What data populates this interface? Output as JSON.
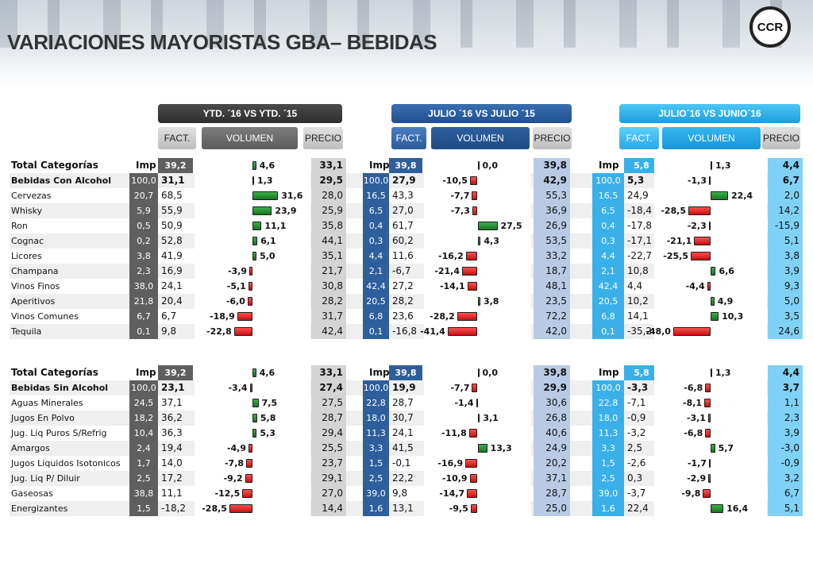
{
  "title": "VARIACIONES MAYORISTAS GBA– BEBIDAS",
  "logo_text": "CCR",
  "headers": {
    "ytd": "YTD. ´16 VS YTD. ´15",
    "julio_anual": "JULIO ´16 VS JULIO ´15",
    "julio_mensual": "JULIO´16 VS JUNIO´16",
    "fact": "FACT.",
    "volumen": "VOLUMEN",
    "precio": "PRECIO"
  },
  "imp_label": "Imp",
  "tables": [
    {
      "rows": [
        {
          "label": "Total  Categorías",
          "style": "t",
          "p1": {
            "imp": "39,2",
            "fact": "",
            "vol": 4.6,
            "vol_txt": "4,6",
            "precio": "33,1"
          },
          "p2": {
            "imp": "39,8",
            "fact": "",
            "vol": 0.0,
            "vol_txt": "0,0",
            "precio": "39,8"
          },
          "p3": {
            "imp": "5,8",
            "fact": "",
            "vol": 1.3,
            "vol_txt": "1,3",
            "precio": "4,4"
          }
        },
        {
          "label": "Bebidas Con Alcohol",
          "style": "b",
          "p1": {
            "imp": "100,0",
            "fact": "31,1",
            "vol": 1.3,
            "vol_txt": "1,3",
            "precio": "29,5"
          },
          "p2": {
            "imp": "100,0",
            "fact": "27,9",
            "vol": -10.5,
            "vol_txt": "-10,5",
            "precio": "42,9"
          },
          "p3": {
            "imp": "100,0",
            "fact": "5,3",
            "vol": -1.3,
            "vol_txt": "-1,3",
            "precio": "6,7"
          }
        },
        {
          "label": "Cervezas",
          "style": "",
          "p1": {
            "imp": "20,7",
            "fact": "68,5",
            "vol": 31.6,
            "vol_txt": "31,6",
            "precio": "28,0"
          },
          "p2": {
            "imp": "16,5",
            "fact": "43,3",
            "vol": -7.7,
            "vol_txt": "-7,7",
            "precio": "55,3"
          },
          "p3": {
            "imp": "16,5",
            "fact": "24,9",
            "vol": 22.4,
            "vol_txt": "22,4",
            "precio": "2,0"
          }
        },
        {
          "label": "Whisky",
          "style": "",
          "p1": {
            "imp": "5,9",
            "fact": "55,9",
            "vol": 23.9,
            "vol_txt": "23,9",
            "precio": "25,9"
          },
          "p2": {
            "imp": "6,5",
            "fact": "27,0",
            "vol": -7.3,
            "vol_txt": "-7,3",
            "precio": "36,9"
          },
          "p3": {
            "imp": "6,5",
            "fact": "-18,4",
            "vol": -28.5,
            "vol_txt": "-28,5",
            "precio": "14,2"
          }
        },
        {
          "label": "Ron",
          "style": "",
          "p1": {
            "imp": "0,5",
            "fact": "50,9",
            "vol": 11.1,
            "vol_txt": "11,1",
            "precio": "35,8"
          },
          "p2": {
            "imp": "0,4",
            "fact": "61,7",
            "vol": 27.5,
            "vol_txt": "27,5",
            "precio": "26,9"
          },
          "p3": {
            "imp": "0,4",
            "fact": "-17,8",
            "vol": -2.3,
            "vol_txt": "-2,3",
            "precio": "-15,9"
          }
        },
        {
          "label": "Cognac",
          "style": "",
          "p1": {
            "imp": "0,2",
            "fact": "52,8",
            "vol": 6.1,
            "vol_txt": "6,1",
            "precio": "44,1"
          },
          "p2": {
            "imp": "0,3",
            "fact": "60,2",
            "vol": 4.3,
            "vol_txt": "4,3",
            "precio": "53,5"
          },
          "p3": {
            "imp": "0,3",
            "fact": "-17,1",
            "vol": -21.1,
            "vol_txt": "-21,1",
            "precio": "5,1"
          }
        },
        {
          "label": "Licores",
          "style": "",
          "p1": {
            "imp": "3,8",
            "fact": "41,9",
            "vol": 5.0,
            "vol_txt": "5,0",
            "precio": "35,1"
          },
          "p2": {
            "imp": "4,4",
            "fact": "11,6",
            "vol": -16.2,
            "vol_txt": "-16,2",
            "precio": "33,2"
          },
          "p3": {
            "imp": "4,4",
            "fact": "-22,7",
            "vol": -25.5,
            "vol_txt": "-25,5",
            "precio": "3,8"
          }
        },
        {
          "label": "Champana",
          "style": "",
          "p1": {
            "imp": "2,3",
            "fact": "16,9",
            "vol": -3.9,
            "vol_txt": "-3,9",
            "precio": "21,7"
          },
          "p2": {
            "imp": "2,1",
            "fact": "-6,7",
            "vol": -21.4,
            "vol_txt": "-21,4",
            "precio": "18,7"
          },
          "p3": {
            "imp": "2,1",
            "fact": "10,8",
            "vol": 6.6,
            "vol_txt": "6,6",
            "precio": "3,9"
          }
        },
        {
          "label": "Vinos Finos",
          "style": "",
          "p1": {
            "imp": "38,0",
            "fact": "24,1",
            "vol": -5.1,
            "vol_txt": "-5,1",
            "precio": "30,8"
          },
          "p2": {
            "imp": "42,4",
            "fact": "27,2",
            "vol": -14.1,
            "vol_txt": "-14,1",
            "precio": "48,1"
          },
          "p3": {
            "imp": "42,4",
            "fact": "4,4",
            "vol": -4.4,
            "vol_txt": "-4,4",
            "precio": "9,3"
          }
        },
        {
          "label": "Aperitivos",
          "style": "",
          "p1": {
            "imp": "21,8",
            "fact": "20,4",
            "vol": -6.0,
            "vol_txt": "-6,0",
            "precio": "28,2"
          },
          "p2": {
            "imp": "20,5",
            "fact": "28,2",
            "vol": 3.8,
            "vol_txt": "3,8",
            "precio": "23,5"
          },
          "p3": {
            "imp": "20,5",
            "fact": "10,2",
            "vol": 4.9,
            "vol_txt": "4,9",
            "precio": "5,0"
          }
        },
        {
          "label": "Vinos Comunes",
          "style": "",
          "p1": {
            "imp": "6,7",
            "fact": "6,7",
            "vol": -18.9,
            "vol_txt": "-18,9",
            "precio": "31,7"
          },
          "p2": {
            "imp": "6,8",
            "fact": "23,6",
            "vol": -28.2,
            "vol_txt": "-28,2",
            "precio": "72,2"
          },
          "p3": {
            "imp": "6,8",
            "fact": "14,1",
            "vol": 10.3,
            "vol_txt": "10,3",
            "precio": "3,5"
          }
        },
        {
          "label": "Tequila",
          "style": "",
          "p1": {
            "imp": "0,1",
            "fact": "9,8",
            "vol": -22.8,
            "vol_txt": "-22,8",
            "precio": "42,4"
          },
          "p2": {
            "imp": "0,1",
            "fact": "-16,8",
            "vol": -41.4,
            "vol_txt": "-41,4",
            "precio": "42,0"
          },
          "p3": {
            "imp": "0,1",
            "fact": "-35,2",
            "vol": -48.0,
            "vol_txt": "-48,0",
            "precio": "24,6"
          }
        }
      ]
    },
    {
      "rows": [
        {
          "label": "Total  Categorías",
          "style": "t",
          "p1": {
            "imp": "39,2",
            "fact": "",
            "vol": 4.6,
            "vol_txt": "4,6",
            "precio": "33,1"
          },
          "p2": {
            "imp": "39,8",
            "fact": "",
            "vol": 0.0,
            "vol_txt": "0,0",
            "precio": "39,8"
          },
          "p3": {
            "imp": "5,8",
            "fact": "",
            "vol": 1.3,
            "vol_txt": "1,3",
            "precio": "4,4"
          }
        },
        {
          "label": "Bebidas Sin Alcohol",
          "style": "b",
          "p1": {
            "imp": "100,0",
            "fact": "23,1",
            "vol": -3.4,
            "vol_txt": "-3,4",
            "precio": "27,4"
          },
          "p2": {
            "imp": "100,0",
            "fact": "19,9",
            "vol": -7.7,
            "vol_txt": "-7,7",
            "precio": "29,9"
          },
          "p3": {
            "imp": "100,0",
            "fact": "-3,3",
            "vol": -6.8,
            "vol_txt": "-6,8",
            "precio": "3,7"
          }
        },
        {
          "label": "Aguas Minerales",
          "style": "",
          "p1": {
            "imp": "24,5",
            "fact": "37,1",
            "vol": 7.5,
            "vol_txt": "7,5",
            "precio": "27,5"
          },
          "p2": {
            "imp": "22,8",
            "fact": "28,7",
            "vol": -1.4,
            "vol_txt": "-1,4",
            "precio": "30,6"
          },
          "p3": {
            "imp": "22,8",
            "fact": "-7,1",
            "vol": -8.1,
            "vol_txt": "-8,1",
            "precio": "1,1"
          }
        },
        {
          "label": "Jugos En Polvo",
          "style": "",
          "p1": {
            "imp": "18,2",
            "fact": "36,2",
            "vol": 5.8,
            "vol_txt": "5,8",
            "precio": "28,7"
          },
          "p2": {
            "imp": "18,0",
            "fact": "30,7",
            "vol": 3.1,
            "vol_txt": "3,1",
            "precio": "26,8"
          },
          "p3": {
            "imp": "18,0",
            "fact": "-0,9",
            "vol": -3.1,
            "vol_txt": "-3,1",
            "precio": "2,3"
          }
        },
        {
          "label": "Jug. Liq Puros S/Refrig",
          "style": "",
          "p1": {
            "imp": "10,4",
            "fact": "36,3",
            "vol": 5.3,
            "vol_txt": "5,3",
            "precio": "29,4"
          },
          "p2": {
            "imp": "11,3",
            "fact": "24,1",
            "vol": -11.8,
            "vol_txt": "-11,8",
            "precio": "40,6"
          },
          "p3": {
            "imp": "11,3",
            "fact": "-3,2",
            "vol": -6.8,
            "vol_txt": "-6,8",
            "precio": "3,9"
          }
        },
        {
          "label": "Amargos",
          "style": "",
          "p1": {
            "imp": "2,4",
            "fact": "19,4",
            "vol": -4.9,
            "vol_txt": "-4,9",
            "precio": "25,5"
          },
          "p2": {
            "imp": "3,3",
            "fact": "41,5",
            "vol": 13.3,
            "vol_txt": "13,3",
            "precio": "24,9"
          },
          "p3": {
            "imp": "3,3",
            "fact": "2,5",
            "vol": 5.7,
            "vol_txt": "5,7",
            "precio": "-3,0"
          }
        },
        {
          "label": "Jugos Liquidos Isotonicos",
          "style": "",
          "p1": {
            "imp": "1,7",
            "fact": "14,0",
            "vol": -7.8,
            "vol_txt": "-7,8",
            "precio": "23,7"
          },
          "p2": {
            "imp": "1,5",
            "fact": "-0,1",
            "vol": -16.9,
            "vol_txt": "-16,9",
            "precio": "20,2"
          },
          "p3": {
            "imp": "1,5",
            "fact": "-2,6",
            "vol": -1.7,
            "vol_txt": "-1,7",
            "precio": "-0,9"
          }
        },
        {
          "label": "Jug. Liq P/ Diluir",
          "style": "",
          "p1": {
            "imp": "2,5",
            "fact": "17,2",
            "vol": -9.2,
            "vol_txt": "-9,2",
            "precio": "29,1"
          },
          "p2": {
            "imp": "2,5",
            "fact": "22,2",
            "vol": -10.9,
            "vol_txt": "-10,9",
            "precio": "37,1"
          },
          "p3": {
            "imp": "2,5",
            "fact": "0,3",
            "vol": -2.9,
            "vol_txt": "-2,9",
            "precio": "3,2"
          }
        },
        {
          "label": "Gaseosas",
          "style": "",
          "p1": {
            "imp": "38,8",
            "fact": "11,1",
            "vol": -12.5,
            "vol_txt": "-12,5",
            "precio": "27,0"
          },
          "p2": {
            "imp": "39,0",
            "fact": "9,8",
            "vol": -14.7,
            "vol_txt": "-14,7",
            "precio": "28,7"
          },
          "p3": {
            "imp": "39,0",
            "fact": "-3,7",
            "vol": -9.8,
            "vol_txt": "-9,8",
            "precio": "6,7"
          }
        },
        {
          "label": "Energizantes",
          "style": "",
          "p1": {
            "imp": "1,5",
            "fact": "-18,2",
            "vol": -28.5,
            "vol_txt": "-28,5",
            "precio": "14,4"
          },
          "p2": {
            "imp": "1,6",
            "fact": "13,1",
            "vol": -9.5,
            "vol_txt": "-9,5",
            "precio": "25,0"
          },
          "p3": {
            "imp": "1,6",
            "fact": "22,4",
            "vol": 16.4,
            "vol_txt": "16,4",
            "precio": "5,1"
          }
        }
      ]
    }
  ],
  "colors": {
    "positive": "#2e9a3a",
    "negative": "#e01e1e",
    "panel1": "#5f5f5f",
    "panel2": "#2f5e9d",
    "panel3": "#3ab0ea"
  }
}
